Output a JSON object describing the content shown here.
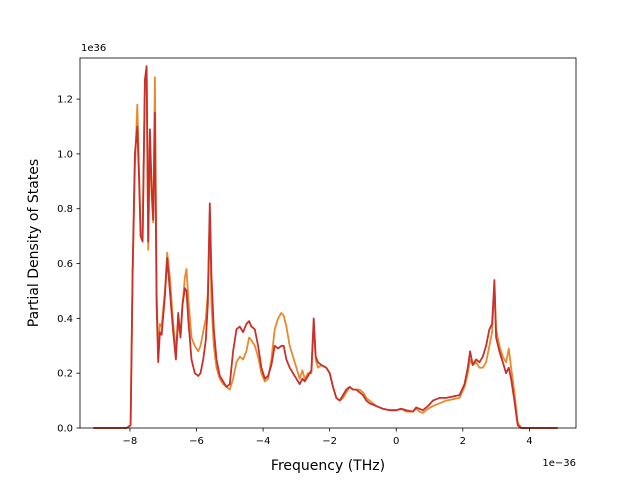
{
  "chart_data": {
    "type": "line",
    "title": "",
    "xlabel": "Frequency (THz)",
    "ylabel": "Partial Density of States",
    "x_offset_text": "1e−36",
    "y_offset_text": "1e36",
    "xlim": [
      -9.5,
      5.4
    ],
    "ylim": [
      0,
      1.35
    ],
    "x_ticks": [
      -8,
      -6,
      -4,
      -2,
      0,
      2,
      4
    ],
    "x_tick_labels": [
      "−8",
      "−6",
      "−4",
      "−2",
      "0",
      "2",
      "4"
    ],
    "y_ticks": [
      0.0,
      0.2,
      0.4,
      0.6,
      0.8,
      1.0,
      1.2
    ],
    "y_tick_labels": [
      "0.0",
      "0.2",
      "0.4",
      "0.6",
      "0.8",
      "1.0",
      "1.2"
    ],
    "grid": false,
    "legend": false,
    "series": [
      {
        "color": "#e8892c",
        "points": [
          [
            -9.1,
            0
          ],
          [
            -8.1,
            0
          ],
          [
            -7.98,
            0.01
          ],
          [
            -7.92,
            0.55
          ],
          [
            -7.85,
            0.95
          ],
          [
            -7.78,
            1.18
          ],
          [
            -7.72,
            0.9
          ],
          [
            -7.68,
            0.72
          ],
          [
            -7.62,
            0.7
          ],
          [
            -7.55,
            1.25
          ],
          [
            -7.5,
            1.31
          ],
          [
            -7.45,
            0.65
          ],
          [
            -7.4,
            1.05
          ],
          [
            -7.35,
            0.85
          ],
          [
            -7.3,
            0.75
          ],
          [
            -7.25,
            1.28
          ],
          [
            -7.2,
            0.5
          ],
          [
            -7.15,
            0.28
          ],
          [
            -7.1,
            0.38
          ],
          [
            -7.05,
            0.37
          ],
          [
            -6.95,
            0.5
          ],
          [
            -6.88,
            0.64
          ],
          [
            -6.8,
            0.55
          ],
          [
            -6.7,
            0.38
          ],
          [
            -6.62,
            0.28
          ],
          [
            -6.55,
            0.38
          ],
          [
            -6.48,
            0.34
          ],
          [
            -6.42,
            0.45
          ],
          [
            -6.35,
            0.55
          ],
          [
            -6.3,
            0.58
          ],
          [
            -6.25,
            0.48
          ],
          [
            -6.15,
            0.33
          ],
          [
            -6.05,
            0.3
          ],
          [
            -5.95,
            0.28
          ],
          [
            -5.88,
            0.3
          ],
          [
            -5.8,
            0.35
          ],
          [
            -5.72,
            0.4
          ],
          [
            -5.66,
            0.49
          ],
          [
            -5.6,
            0.78
          ],
          [
            -5.55,
            0.45
          ],
          [
            -5.48,
            0.3
          ],
          [
            -5.4,
            0.22
          ],
          [
            -5.3,
            0.18
          ],
          [
            -5.2,
            0.16
          ],
          [
            -5.1,
            0.15
          ],
          [
            -5.0,
            0.14
          ],
          [
            -4.9,
            0.18
          ],
          [
            -4.8,
            0.24
          ],
          [
            -4.7,
            0.26
          ],
          [
            -4.6,
            0.25
          ],
          [
            -4.5,
            0.28
          ],
          [
            -4.42,
            0.33
          ],
          [
            -4.35,
            0.32
          ],
          [
            -4.25,
            0.3
          ],
          [
            -4.15,
            0.26
          ],
          [
            -4.05,
            0.2
          ],
          [
            -3.95,
            0.17
          ],
          [
            -3.85,
            0.18
          ],
          [
            -3.75,
            0.25
          ],
          [
            -3.65,
            0.36
          ],
          [
            -3.55,
            0.4
          ],
          [
            -3.45,
            0.42
          ],
          [
            -3.38,
            0.41
          ],
          [
            -3.3,
            0.37
          ],
          [
            -3.2,
            0.3
          ],
          [
            -3.1,
            0.26
          ],
          [
            -3.0,
            0.22
          ],
          [
            -2.9,
            0.18
          ],
          [
            -2.82,
            0.21
          ],
          [
            -2.75,
            0.18
          ],
          [
            -2.65,
            0.2
          ],
          [
            -2.55,
            0.2
          ],
          [
            -2.48,
            0.38
          ],
          [
            -2.42,
            0.25
          ],
          [
            -2.35,
            0.22
          ],
          [
            -2.25,
            0.23
          ],
          [
            -2.1,
            0.22
          ],
          [
            -2.0,
            0.2
          ],
          [
            -1.9,
            0.15
          ],
          [
            -1.8,
            0.11
          ],
          [
            -1.7,
            0.1
          ],
          [
            -1.6,
            0.11
          ],
          [
            -1.5,
            0.13
          ],
          [
            -1.4,
            0.15
          ],
          [
            -1.3,
            0.14
          ],
          [
            -1.2,
            0.14
          ],
          [
            -1.1,
            0.14
          ],
          [
            -1.0,
            0.13
          ],
          [
            -0.9,
            0.11
          ],
          [
            -0.8,
            0.1
          ],
          [
            -0.6,
            0.08
          ],
          [
            -0.4,
            0.07
          ],
          [
            -0.2,
            0.065
          ],
          [
            0.0,
            0.065
          ],
          [
            0.15,
            0.07
          ],
          [
            0.3,
            0.06
          ],
          [
            0.5,
            0.06
          ],
          [
            0.6,
            0.07
          ],
          [
            0.7,
            0.06
          ],
          [
            0.8,
            0.055
          ],
          [
            0.95,
            0.07
          ],
          [
            1.1,
            0.08
          ],
          [
            1.3,
            0.09
          ],
          [
            1.5,
            0.1
          ],
          [
            1.7,
            0.105
          ],
          [
            1.9,
            0.11
          ],
          [
            2.05,
            0.15
          ],
          [
            2.15,
            0.2
          ],
          [
            2.22,
            0.25
          ],
          [
            2.3,
            0.23
          ],
          [
            2.4,
            0.24
          ],
          [
            2.5,
            0.22
          ],
          [
            2.6,
            0.22
          ],
          [
            2.7,
            0.24
          ],
          [
            2.8,
            0.3
          ],
          [
            2.88,
            0.35
          ],
          [
            2.95,
            0.52
          ],
          [
            3.0,
            0.36
          ],
          [
            3.1,
            0.3
          ],
          [
            3.2,
            0.26
          ],
          [
            3.3,
            0.24
          ],
          [
            3.38,
            0.29
          ],
          [
            3.45,
            0.22
          ],
          [
            3.55,
            0.13
          ],
          [
            3.65,
            0.02
          ],
          [
            3.75,
            0.0
          ],
          [
            4.85,
            0.0
          ]
        ]
      },
      {
        "color": "#c8302c",
        "points": [
          [
            -9.1,
            0
          ],
          [
            -8.1,
            0
          ],
          [
            -7.98,
            0.01
          ],
          [
            -7.92,
            0.57
          ],
          [
            -7.85,
            1.0
          ],
          [
            -7.78,
            1.1
          ],
          [
            -7.72,
            0.88
          ],
          [
            -7.68,
            0.7
          ],
          [
            -7.62,
            0.68
          ],
          [
            -7.55,
            1.27
          ],
          [
            -7.5,
            1.32
          ],
          [
            -7.45,
            0.68
          ],
          [
            -7.4,
            1.09
          ],
          [
            -7.35,
            0.88
          ],
          [
            -7.3,
            0.76
          ],
          [
            -7.25,
            1.15
          ],
          [
            -7.2,
            0.45
          ],
          [
            -7.15,
            0.24
          ],
          [
            -7.1,
            0.35
          ],
          [
            -7.05,
            0.34
          ],
          [
            -6.95,
            0.48
          ],
          [
            -6.88,
            0.62
          ],
          [
            -6.8,
            0.5
          ],
          [
            -6.7,
            0.35
          ],
          [
            -6.62,
            0.25
          ],
          [
            -6.55,
            0.42
          ],
          [
            -6.48,
            0.33
          ],
          [
            -6.42,
            0.45
          ],
          [
            -6.35,
            0.51
          ],
          [
            -6.3,
            0.5
          ],
          [
            -6.25,
            0.4
          ],
          [
            -6.15,
            0.25
          ],
          [
            -6.05,
            0.2
          ],
          [
            -5.95,
            0.19
          ],
          [
            -5.88,
            0.2
          ],
          [
            -5.8,
            0.25
          ],
          [
            -5.72,
            0.32
          ],
          [
            -5.66,
            0.45
          ],
          [
            -5.6,
            0.82
          ],
          [
            -5.55,
            0.55
          ],
          [
            -5.48,
            0.36
          ],
          [
            -5.4,
            0.25
          ],
          [
            -5.3,
            0.19
          ],
          [
            -5.2,
            0.17
          ],
          [
            -5.1,
            0.15
          ],
          [
            -5.0,
            0.16
          ],
          [
            -4.9,
            0.28
          ],
          [
            -4.8,
            0.36
          ],
          [
            -4.7,
            0.37
          ],
          [
            -4.6,
            0.35
          ],
          [
            -4.5,
            0.38
          ],
          [
            -4.42,
            0.39
          ],
          [
            -4.35,
            0.37
          ],
          [
            -4.25,
            0.36
          ],
          [
            -4.15,
            0.3
          ],
          [
            -4.05,
            0.22
          ],
          [
            -3.95,
            0.18
          ],
          [
            -3.85,
            0.19
          ],
          [
            -3.75,
            0.23
          ],
          [
            -3.65,
            0.3
          ],
          [
            -3.55,
            0.29
          ],
          [
            -3.45,
            0.3
          ],
          [
            -3.38,
            0.3
          ],
          [
            -3.3,
            0.25
          ],
          [
            -3.2,
            0.22
          ],
          [
            -3.1,
            0.2
          ],
          [
            -3.0,
            0.18
          ],
          [
            -2.9,
            0.16
          ],
          [
            -2.82,
            0.18
          ],
          [
            -2.75,
            0.17
          ],
          [
            -2.65,
            0.19
          ],
          [
            -2.55,
            0.21
          ],
          [
            -2.48,
            0.4
          ],
          [
            -2.42,
            0.26
          ],
          [
            -2.35,
            0.24
          ],
          [
            -2.25,
            0.23
          ],
          [
            -2.1,
            0.22
          ],
          [
            -2.0,
            0.2
          ],
          [
            -1.9,
            0.15
          ],
          [
            -1.8,
            0.11
          ],
          [
            -1.7,
            0.1
          ],
          [
            -1.6,
            0.12
          ],
          [
            -1.5,
            0.14
          ],
          [
            -1.4,
            0.15
          ],
          [
            -1.3,
            0.14
          ],
          [
            -1.2,
            0.14
          ],
          [
            -1.1,
            0.13
          ],
          [
            -1.0,
            0.12
          ],
          [
            -0.9,
            0.1
          ],
          [
            -0.8,
            0.09
          ],
          [
            -0.6,
            0.08
          ],
          [
            -0.4,
            0.07
          ],
          [
            -0.2,
            0.065
          ],
          [
            0.0,
            0.065
          ],
          [
            0.15,
            0.07
          ],
          [
            0.3,
            0.065
          ],
          [
            0.5,
            0.06
          ],
          [
            0.6,
            0.075
          ],
          [
            0.7,
            0.07
          ],
          [
            0.8,
            0.065
          ],
          [
            0.95,
            0.08
          ],
          [
            1.1,
            0.1
          ],
          [
            1.3,
            0.11
          ],
          [
            1.5,
            0.11
          ],
          [
            1.7,
            0.115
          ],
          [
            1.9,
            0.12
          ],
          [
            2.05,
            0.16
          ],
          [
            2.15,
            0.22
          ],
          [
            2.22,
            0.28
          ],
          [
            2.3,
            0.23
          ],
          [
            2.4,
            0.25
          ],
          [
            2.5,
            0.24
          ],
          [
            2.6,
            0.26
          ],
          [
            2.7,
            0.3
          ],
          [
            2.8,
            0.36
          ],
          [
            2.88,
            0.38
          ],
          [
            2.95,
            0.54
          ],
          [
            3.0,
            0.33
          ],
          [
            3.1,
            0.28
          ],
          [
            3.2,
            0.24
          ],
          [
            3.3,
            0.2
          ],
          [
            3.38,
            0.22
          ],
          [
            3.45,
            0.18
          ],
          [
            3.55,
            0.1
          ],
          [
            3.65,
            0.01
          ],
          [
            3.75,
            0.0
          ],
          [
            4.85,
            0.0
          ]
        ]
      }
    ]
  }
}
